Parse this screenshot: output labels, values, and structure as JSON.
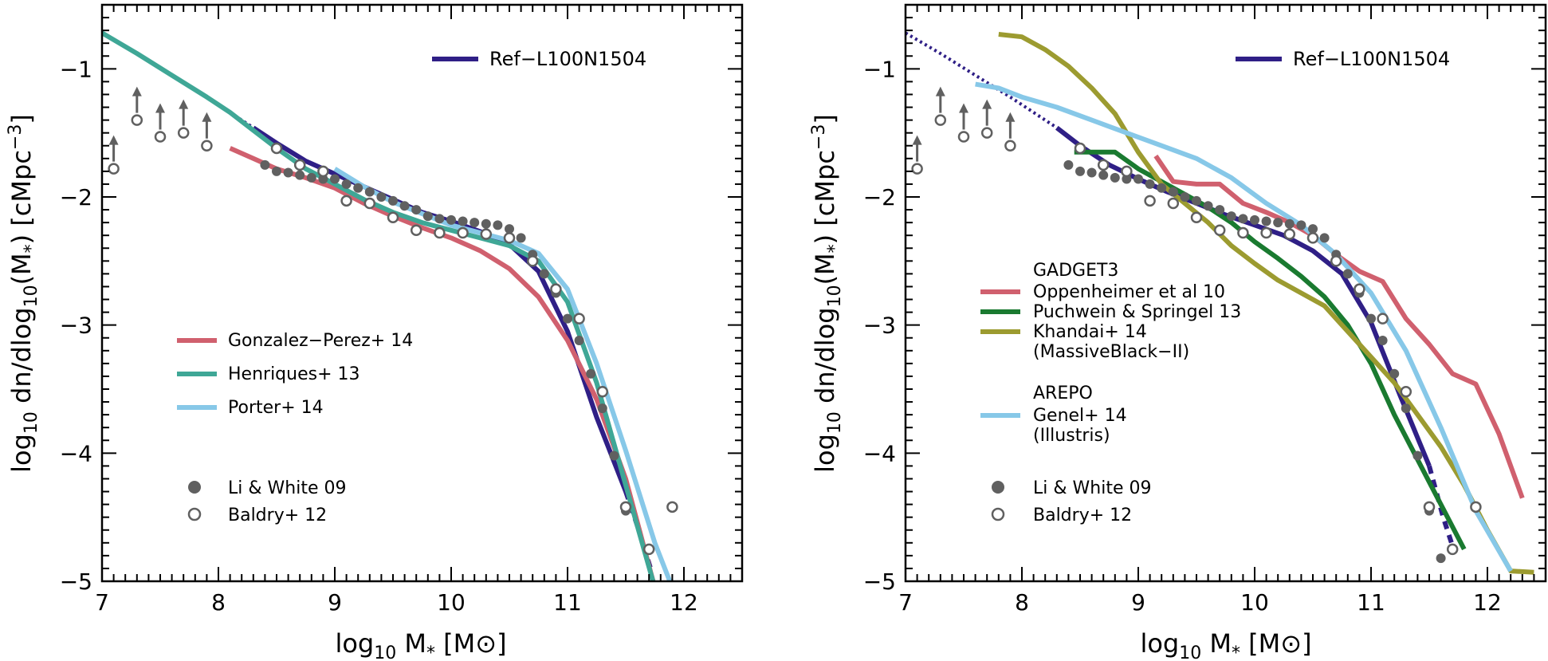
{
  "chart_data": [
    {
      "type": "line",
      "panel": "left",
      "xlabel": {
        "main": "log",
        "sub": "10",
        "mid": " M",
        "star": "*",
        "unit": " [M",
        "sun": "⊙",
        "close": "]"
      },
      "ylabel": {
        "a": "log",
        "b": "10",
        "c": " dn/dlog",
        "d": "10",
        "e": "(M",
        "f": "*",
        "g": ")  [cMpc",
        "h": "−3",
        "i": "]"
      },
      "xlim": [
        7.0,
        12.5
      ],
      "ylim": [
        -5.0,
        -0.5
      ],
      "xticks": [
        "7",
        "8",
        "9",
        "10",
        "11",
        "12"
      ],
      "xtick_values": [
        7,
        8,
        9,
        10,
        11,
        12
      ],
      "yticks": [
        "−1",
        "−2",
        "−3",
        "−4",
        "−5"
      ],
      "ytick_values": [
        -1,
        -2,
        -3,
        -4,
        -5
      ],
      "legend_top": "Ref−L100N1504",
      "legend_models": [
        "Gonzalez−Perez+ 14",
        "Henriques+ 13",
        "Porter+ 14"
      ],
      "legend_obs": [
        "Li & White 09",
        "Baldry+ 12"
      ],
      "series": [
        {
          "name": "Ref−L100N1504",
          "color": "#2f1f86",
          "style": "dotted",
          "x": [
            7.0,
            7.3,
            7.6,
            7.9,
            8.15,
            8.3
          ],
          "y": [
            -0.72,
            -0.88,
            -1.05,
            -1.22,
            -1.37,
            -1.46
          ]
        },
        {
          "name": "Ref−L100N1504",
          "color": "#2f1f86",
          "style": "solid",
          "x": [
            8.3,
            8.5,
            8.75,
            9.0,
            9.25,
            9.5,
            9.75,
            10.0,
            10.25,
            10.5,
            10.75,
            11.0,
            11.25,
            11.5
          ],
          "y": [
            -1.46,
            -1.58,
            -1.72,
            -1.82,
            -1.92,
            -2.02,
            -2.12,
            -2.19,
            -2.27,
            -2.37,
            -2.58,
            -3.05,
            -3.72,
            -4.3
          ]
        },
        {
          "name": "Ref−L100N1504",
          "color": "#2f1f86",
          "style": "dashed",
          "x": [
            11.5,
            11.62,
            11.72
          ],
          "y": [
            -4.3,
            -4.62,
            -4.92
          ]
        },
        {
          "name": "Gonzalez−Perez+ 14",
          "color": "#d0606e",
          "style": "solid",
          "x": [
            8.1,
            8.3,
            8.5,
            8.75,
            9.0,
            9.25,
            9.5,
            9.75,
            10.0,
            10.25,
            10.5,
            10.75,
            11.0,
            11.25,
            11.5,
            11.75
          ],
          "y": [
            -1.62,
            -1.7,
            -1.78,
            -1.85,
            -1.93,
            -2.05,
            -2.15,
            -2.24,
            -2.32,
            -2.42,
            -2.56,
            -2.78,
            -3.12,
            -3.58,
            -4.2,
            -5.05
          ]
        },
        {
          "name": "Henriques+ 13",
          "color": "#3fa796",
          "style": "solid",
          "x": [
            7.0,
            7.3,
            7.6,
            7.9,
            8.1,
            8.3,
            8.5,
            8.75,
            9.0,
            9.25,
            9.5,
            9.75,
            10.0,
            10.25,
            10.5,
            10.75,
            11.0,
            11.25,
            11.5,
            11.75
          ],
          "y": [
            -0.72,
            -0.88,
            -1.05,
            -1.22,
            -1.34,
            -1.48,
            -1.62,
            -1.78,
            -1.9,
            -2.02,
            -2.12,
            -2.2,
            -2.26,
            -2.32,
            -2.38,
            -2.5,
            -2.82,
            -3.45,
            -4.25,
            -5.05
          ]
        },
        {
          "name": "Porter+ 14",
          "color": "#87c8e8",
          "style": "solid",
          "x": [
            9.0,
            9.25,
            9.5,
            9.75,
            10.0,
            10.25,
            10.5,
            10.75,
            11.0,
            11.25,
            11.5,
            11.75,
            11.9
          ],
          "y": [
            -1.78,
            -1.92,
            -2.04,
            -2.13,
            -2.22,
            -2.28,
            -2.34,
            -2.44,
            -2.72,
            -3.3,
            -3.98,
            -4.7,
            -5.05
          ]
        }
      ],
      "observations": [
        {
          "name": "Li & White 09",
          "marker": "filled-circle",
          "x": [
            8.4,
            8.5,
            8.6,
            8.7,
            8.8,
            8.9,
            9.0,
            9.1,
            9.2,
            9.3,
            9.4,
            9.5,
            9.6,
            9.7,
            9.8,
            9.9,
            10.0,
            10.1,
            10.2,
            10.3,
            10.4,
            10.5,
            10.6,
            10.7,
            10.8,
            10.9,
            11.0,
            11.1,
            11.2,
            11.3,
            11.4,
            11.5
          ],
          "y": [
            -1.75,
            -1.8,
            -1.81,
            -1.83,
            -1.85,
            -1.86,
            -1.86,
            -1.9,
            -1.93,
            -1.96,
            -2.0,
            -2.03,
            -2.07,
            -2.1,
            -2.15,
            -2.17,
            -2.18,
            -2.19,
            -2.2,
            -2.21,
            -2.22,
            -2.25,
            -2.32,
            -2.45,
            -2.6,
            -2.75,
            -2.95,
            -3.12,
            -3.38,
            -3.65,
            -4.02,
            -4.45
          ]
        },
        {
          "name": "Baldry+ 12",
          "marker": "open-circle",
          "x": [
            8.5,
            8.7,
            8.9,
            9.1,
            9.3,
            9.5,
            9.7,
            9.9,
            10.1,
            10.3,
            10.5,
            10.7,
            10.9,
            11.1,
            11.3,
            11.5,
            11.7,
            11.9
          ],
          "y": [
            -1.62,
            -1.75,
            -1.8,
            -2.03,
            -2.05,
            -2.16,
            -2.26,
            -2.28,
            -2.28,
            -2.29,
            -2.32,
            -2.5,
            -2.72,
            -2.95,
            -3.52,
            -4.42,
            -4.75,
            -4.42
          ]
        },
        {
          "name": "Baldry+ 12 lower limits",
          "marker": "arrow-up",
          "x": [
            7.1,
            7.3,
            7.5,
            7.7,
            7.9
          ],
          "y": [
            -1.78,
            -1.4,
            -1.53,
            -1.5,
            -1.6
          ]
        }
      ]
    },
    {
      "type": "line",
      "panel": "right",
      "xlabel": {
        "main": "log",
        "sub": "10",
        "mid": " M",
        "star": "*",
        "unit": " [M",
        "sun": "⊙",
        "close": "]"
      },
      "ylabel": {
        "a": "log",
        "b": "10",
        "c": " dn/dlog",
        "d": "10",
        "e": "(M",
        "f": "*",
        "g": ")  [cMpc",
        "h": "−3",
        "i": "]"
      },
      "xlim": [
        7.0,
        12.5
      ],
      "ylim": [
        -5.0,
        -0.5
      ],
      "xticks": [
        "7",
        "8",
        "9",
        "10",
        "11",
        "12"
      ],
      "xtick_values": [
        7,
        8,
        9,
        10,
        11,
        12
      ],
      "yticks": [
        "−1",
        "−2",
        "−3",
        "−4",
        "−5"
      ],
      "ytick_values": [
        -1,
        -2,
        -3,
        -4,
        -5
      ],
      "legend_top": "Ref−L100N1504",
      "legend_heading_1": "GADGET3",
      "legend_models_1": [
        "Oppenheimer et al 10",
        "Puchwein & Springel 13",
        "Khandai+ 14"
      ],
      "legend_note_1": "(MassiveBlack−II)",
      "legend_heading_2": "AREPO",
      "legend_models_2": [
        "Genel+ 14"
      ],
      "legend_note_2": "(Illustris)",
      "legend_obs": [
        "Li & White 09",
        "Baldry+ 12"
      ],
      "series": [
        {
          "name": "Ref−L100N1504",
          "color": "#2f1f86",
          "style": "dotted",
          "x": [
            7.0,
            7.3,
            7.6,
            7.9,
            8.15,
            8.3
          ],
          "y": [
            -0.72,
            -0.88,
            -1.05,
            -1.22,
            -1.37,
            -1.46
          ]
        },
        {
          "name": "Ref−L100N1504",
          "color": "#2f1f86",
          "style": "solid",
          "x": [
            8.3,
            8.5,
            8.75,
            9.0,
            9.25,
            9.5,
            9.75,
            10.0,
            10.25,
            10.5,
            10.75,
            11.0,
            11.25,
            11.5
          ],
          "y": [
            -1.46,
            -1.6,
            -1.75,
            -1.86,
            -1.96,
            -2.05,
            -2.14,
            -2.22,
            -2.3,
            -2.42,
            -2.6,
            -2.98,
            -3.55,
            -4.1
          ]
        },
        {
          "name": "Ref−L100N1504",
          "color": "#2f1f86",
          "style": "dashed",
          "x": [
            11.5,
            11.62,
            11.72
          ],
          "y": [
            -4.1,
            -4.5,
            -4.78
          ]
        },
        {
          "name": "Oppenheimer et al 10",
          "color": "#d0606e",
          "style": "solid",
          "x": [
            9.15,
            9.3,
            9.5,
            9.7,
            9.9,
            10.1,
            10.3,
            10.5,
            10.7,
            10.9,
            11.1,
            11.3,
            11.5,
            11.7,
            11.9,
            12.1,
            12.3
          ],
          "y": [
            -1.68,
            -1.88,
            -1.9,
            -1.9,
            -2.05,
            -2.12,
            -2.2,
            -2.3,
            -2.45,
            -2.58,
            -2.66,
            -2.95,
            -3.15,
            -3.38,
            -3.46,
            -3.85,
            -4.35
          ]
        },
        {
          "name": "Puchwein & Springel 13",
          "color": "#1a7a30",
          "style": "solid",
          "x": [
            8.45,
            8.6,
            8.8,
            9.0,
            9.2,
            9.4,
            9.6,
            9.8,
            10.0,
            10.2,
            10.4,
            10.6,
            10.8,
            11.0,
            11.2,
            11.4,
            11.6,
            11.8
          ],
          "y": [
            -1.65,
            -1.65,
            -1.65,
            -1.78,
            -1.88,
            -1.98,
            -2.08,
            -2.2,
            -2.35,
            -2.48,
            -2.62,
            -2.78,
            -3.0,
            -3.3,
            -3.7,
            -4.05,
            -4.4,
            -4.75
          ]
        },
        {
          "name": "Khandai+ 14",
          "color": "#9c9b30",
          "style": "solid",
          "x": [
            7.8,
            8.0,
            8.2,
            8.4,
            8.6,
            8.8,
            9.0,
            9.2,
            9.4,
            9.6,
            9.8,
            10.0,
            10.2,
            10.4,
            10.6,
            10.8,
            11.0,
            11.2,
            11.4,
            11.6,
            11.8,
            12.0,
            12.2,
            12.4
          ],
          "y": [
            -0.73,
            -0.75,
            -0.85,
            -0.98,
            -1.15,
            -1.35,
            -1.65,
            -1.9,
            -2.05,
            -2.2,
            -2.38,
            -2.52,
            -2.65,
            -2.75,
            -2.85,
            -3.05,
            -3.25,
            -3.45,
            -3.7,
            -3.95,
            -4.25,
            -4.6,
            -4.92,
            -4.93
          ]
        },
        {
          "name": "Genel+ 14",
          "color": "#87c8e8",
          "style": "solid",
          "x": [
            7.6,
            7.8,
            8.0,
            8.3,
            8.6,
            8.9,
            9.2,
            9.5,
            9.8,
            10.1,
            10.4,
            10.7,
            11.0,
            11.3,
            11.6,
            11.9,
            12.2
          ],
          "y": [
            -1.12,
            -1.15,
            -1.22,
            -1.3,
            -1.4,
            -1.5,
            -1.6,
            -1.7,
            -1.85,
            -2.05,
            -2.22,
            -2.45,
            -2.75,
            -3.2,
            -3.8,
            -4.45,
            -4.92
          ]
        }
      ],
      "observations": [
        {
          "name": "Li & White 09",
          "marker": "filled-circle",
          "x": [
            8.4,
            8.5,
            8.6,
            8.7,
            8.8,
            8.9,
            9.0,
            9.1,
            9.2,
            9.3,
            9.4,
            9.5,
            9.6,
            9.7,
            9.8,
            9.9,
            10.0,
            10.1,
            10.2,
            10.3,
            10.4,
            10.5,
            10.6,
            10.7,
            10.8,
            10.9,
            11.0,
            11.1,
            11.2,
            11.3,
            11.4,
            11.5,
            11.6
          ],
          "y": [
            -1.75,
            -1.8,
            -1.81,
            -1.83,
            -1.85,
            -1.86,
            -1.86,
            -1.9,
            -1.93,
            -1.96,
            -2.0,
            -2.03,
            -2.07,
            -2.1,
            -2.15,
            -2.17,
            -2.18,
            -2.19,
            -2.2,
            -2.21,
            -2.22,
            -2.25,
            -2.32,
            -2.45,
            -2.6,
            -2.75,
            -2.95,
            -3.12,
            -3.38,
            -3.65,
            -4.02,
            -4.45,
            -4.82
          ]
        },
        {
          "name": "Baldry+ 12",
          "marker": "open-circle",
          "x": [
            8.5,
            8.7,
            8.9,
            9.1,
            9.3,
            9.5,
            9.7,
            9.9,
            10.1,
            10.3,
            10.5,
            10.7,
            10.9,
            11.1,
            11.3,
            11.5,
            11.7,
            11.9
          ],
          "y": [
            -1.62,
            -1.75,
            -1.8,
            -2.03,
            -2.05,
            -2.16,
            -2.26,
            -2.28,
            -2.28,
            -2.29,
            -2.32,
            -2.5,
            -2.72,
            -2.95,
            -3.52,
            -4.42,
            -4.75,
            -4.42
          ]
        },
        {
          "name": "Baldry+ 12 lower limits",
          "marker": "arrow-up",
          "x": [
            7.1,
            7.3,
            7.5,
            7.7,
            7.9
          ],
          "y": [
            -1.78,
            -1.4,
            -1.53,
            -1.5,
            -1.6
          ]
        }
      ]
    }
  ]
}
